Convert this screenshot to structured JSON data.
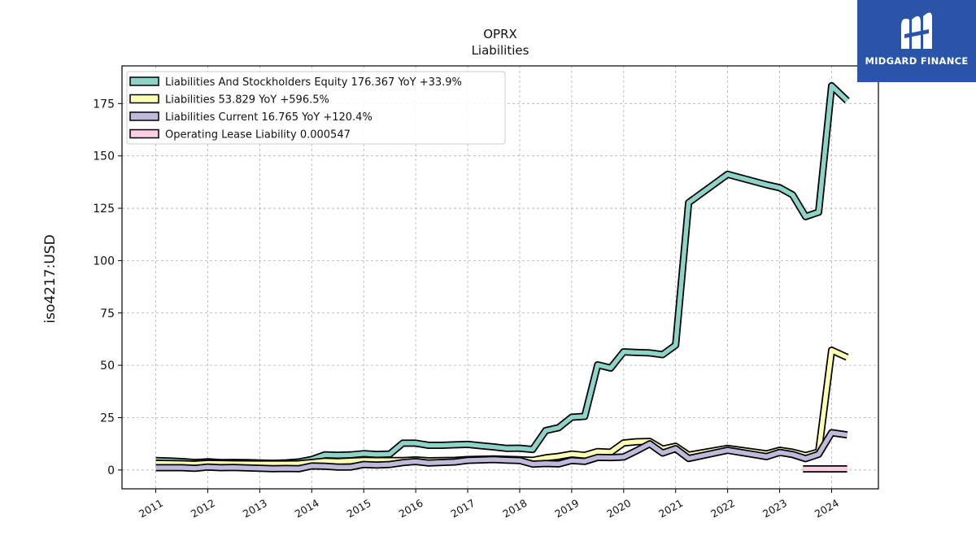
{
  "chart_data": {
    "type": "line",
    "title": "OPRX",
    "subtitle": "Liabilities",
    "ylabel": "iso4217:USD",
    "xlabel": "",
    "xlim": [
      2010.35,
      2024.9
    ],
    "ylim": [
      -9,
      193
    ],
    "yticks": [
      0,
      25,
      50,
      75,
      100,
      125,
      150,
      175
    ],
    "xticks": [
      2011,
      2012,
      2013,
      2014,
      2015,
      2016,
      2017,
      2018,
      2019,
      2020,
      2021,
      2022,
      2023,
      2024
    ],
    "grid": true,
    "legend_position": "top-left",
    "series": [
      {
        "name": "Liabilities And Stockholders Equity",
        "legend_label": "Liabilities And Stockholders Equity  176.367 YoY +33.9%",
        "color": "#8dd3c7",
        "points": [
          [
            2011.0,
            4.5
          ],
          [
            2011.25,
            4.3
          ],
          [
            2011.5,
            4.0
          ],
          [
            2011.75,
            3.6
          ],
          [
            2012.0,
            3.9
          ],
          [
            2012.25,
            3.5
          ],
          [
            2012.5,
            3.6
          ],
          [
            2012.75,
            3.5
          ],
          [
            2013.0,
            3.3
          ],
          [
            2013.25,
            3.2
          ],
          [
            2013.5,
            3.4
          ],
          [
            2013.75,
            3.8
          ],
          [
            2014.0,
            5.0
          ],
          [
            2014.25,
            7.2
          ],
          [
            2014.5,
            7.0
          ],
          [
            2014.75,
            7.2
          ],
          [
            2015.0,
            7.8
          ],
          [
            2015.25,
            7.4
          ],
          [
            2015.5,
            7.6
          ],
          [
            2015.75,
            12.8
          ],
          [
            2016.0,
            12.8
          ],
          [
            2016.25,
            11.8
          ],
          [
            2016.5,
            11.8
          ],
          [
            2016.75,
            12.0
          ],
          [
            2017.0,
            12.2
          ],
          [
            2017.25,
            11.6
          ],
          [
            2017.5,
            11.0
          ],
          [
            2017.75,
            10.3
          ],
          [
            2018.0,
            10.4
          ],
          [
            2018.25,
            9.8
          ],
          [
            2018.5,
            18.8
          ],
          [
            2018.75,
            20.2
          ],
          [
            2019.0,
            25.2
          ],
          [
            2019.25,
            25.6
          ],
          [
            2019.5,
            50.2
          ],
          [
            2019.75,
            48.7
          ],
          [
            2020.0,
            56.4
          ],
          [
            2020.25,
            56.1
          ],
          [
            2020.5,
            55.9
          ],
          [
            2020.75,
            55.1
          ],
          [
            2021.0,
            59.6
          ],
          [
            2021.25,
            127.7
          ],
          [
            2022.0,
            141.2
          ],
          [
            2022.75,
            136.2
          ],
          [
            2023.0,
            134.8
          ],
          [
            2023.25,
            131.4
          ],
          [
            2023.5,
            121.0
          ],
          [
            2023.75,
            123.1
          ],
          [
            2024.0,
            183.5
          ],
          [
            2024.3,
            176.367
          ]
        ]
      },
      {
        "name": "Liabilities",
        "legend_label": "Liabilities  53.829 YoY +596.5%",
        "color": "#ffffb3",
        "points": [
          [
            2011.0,
            3.2
          ],
          [
            2011.5,
            3.0
          ],
          [
            2011.75,
            2.8
          ],
          [
            2012.0,
            3.2
          ],
          [
            2012.5,
            3.0
          ],
          [
            2013.0,
            2.9
          ],
          [
            2013.5,
            2.9
          ],
          [
            2013.75,
            3.0
          ],
          [
            2014.0,
            3.6
          ],
          [
            2014.25,
            4.2
          ],
          [
            2014.5,
            4.0
          ],
          [
            2014.75,
            4.3
          ],
          [
            2015.0,
            4.6
          ],
          [
            2015.25,
            4.5
          ],
          [
            2015.5,
            4.5
          ],
          [
            2015.75,
            4.5
          ],
          [
            2016.0,
            4.8
          ],
          [
            2016.25,
            4.4
          ],
          [
            2016.75,
            4.6
          ],
          [
            2017.0,
            5.0
          ],
          [
            2017.5,
            5.3
          ],
          [
            2017.75,
            5.1
          ],
          [
            2018.0,
            4.9
          ],
          [
            2018.25,
            4.6
          ],
          [
            2018.5,
            5.8
          ],
          [
            2018.75,
            6.5
          ],
          [
            2019.0,
            7.6
          ],
          [
            2019.25,
            7.0
          ],
          [
            2019.5,
            8.8
          ],
          [
            2019.75,
            8.5
          ],
          [
            2020.0,
            12.9
          ],
          [
            2020.25,
            13.5
          ],
          [
            2020.5,
            13.6
          ],
          [
            2020.75,
            10.0
          ],
          [
            2021.0,
            11.3
          ],
          [
            2021.25,
            7.1
          ],
          [
            2022.0,
            10.3
          ],
          [
            2022.75,
            7.7
          ],
          [
            2023.0,
            9.4
          ],
          [
            2023.25,
            8.5
          ],
          [
            2023.5,
            6.9
          ],
          [
            2023.75,
            8.6
          ],
          [
            2024.0,
            57.2
          ],
          [
            2024.3,
            53.829
          ]
        ]
      },
      {
        "name": "Liabilities Current",
        "legend_label": "Liabilities Current  16.765 YoY +120.4%",
        "color": "#bebada",
        "points": [
          [
            2011.0,
            1.1
          ],
          [
            2011.5,
            1.1
          ],
          [
            2011.75,
            0.8
          ],
          [
            2012.0,
            1.4
          ],
          [
            2012.25,
            1.1
          ],
          [
            2012.5,
            1.2
          ],
          [
            2012.75,
            1.0
          ],
          [
            2013.0,
            0.8
          ],
          [
            2013.25,
            0.6
          ],
          [
            2013.5,
            0.7
          ],
          [
            2013.75,
            0.6
          ],
          [
            2014.0,
            1.9
          ],
          [
            2014.25,
            1.8
          ],
          [
            2014.5,
            1.4
          ],
          [
            2014.75,
            1.4
          ],
          [
            2015.0,
            2.6
          ],
          [
            2015.25,
            2.4
          ],
          [
            2015.5,
            2.6
          ],
          [
            2015.75,
            3.5
          ],
          [
            2016.0,
            4.0
          ],
          [
            2016.25,
            3.3
          ],
          [
            2016.75,
            3.8
          ],
          [
            2017.0,
            4.6
          ],
          [
            2017.5,
            5.0
          ],
          [
            2017.75,
            4.7
          ],
          [
            2018.0,
            4.5
          ],
          [
            2018.25,
            2.8
          ],
          [
            2018.5,
            3.1
          ],
          [
            2018.75,
            2.9
          ],
          [
            2019.0,
            4.5
          ],
          [
            2019.25,
            4.1
          ],
          [
            2019.5,
            6.0
          ],
          [
            2019.75,
            5.9
          ],
          [
            2020.0,
            6.2
          ],
          [
            2020.25,
            9.2
          ],
          [
            2020.5,
            12.5
          ],
          [
            2020.75,
            8.1
          ],
          [
            2021.0,
            10.2
          ],
          [
            2021.25,
            5.5
          ],
          [
            2022.0,
            9.4
          ],
          [
            2022.75,
            6.4
          ],
          [
            2023.0,
            8.4
          ],
          [
            2023.25,
            7.4
          ],
          [
            2023.5,
            5.4
          ],
          [
            2023.75,
            7.5
          ],
          [
            2024.0,
            17.8
          ],
          [
            2024.3,
            16.765
          ]
        ]
      },
      {
        "name": "Operating Lease Liability",
        "legend_label": "Operating Lease Liability  0.000547",
        "color": "#fccde5",
        "points": [
          [
            2023.45,
            0.5
          ],
          [
            2024.3,
            0.5
          ]
        ]
      }
    ]
  },
  "branding": {
    "name": "MIDGARD FINANCE",
    "icon": "midgard-logo-icon",
    "background": "#2a54a8"
  }
}
